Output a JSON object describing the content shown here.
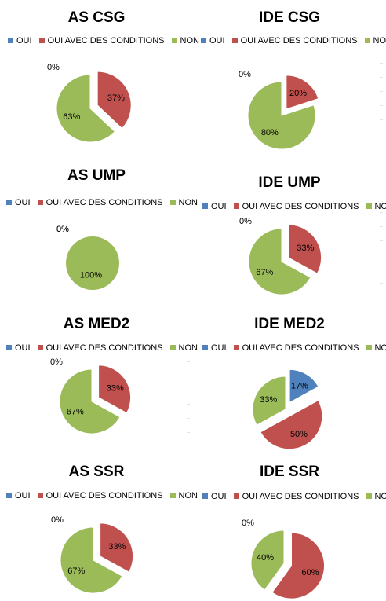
{
  "colors": {
    "OUI": "#4f81bd",
    "OUI AVEC DES CONDITIONS": "#c0504d",
    "NON": "#9bbb59"
  },
  "chart_data": [
    {
      "type": "pie",
      "title": "AS CSG",
      "categories": [
        "OUI",
        "OUI AVEC DES CONDITIONS",
        "NON"
      ],
      "values": [
        0,
        37,
        63
      ],
      "labels": [
        "0%",
        "37%",
        "63%"
      ],
      "legend_position": "top"
    },
    {
      "type": "pie",
      "title": "IDE CSG",
      "categories": [
        "OUI",
        "OUI AVEC DES CONDITIONS",
        "NON"
      ],
      "values": [
        0,
        20,
        80
      ],
      "labels": [
        "0%",
        "20%",
        "80%"
      ],
      "legend_position": "top"
    },
    {
      "type": "pie",
      "title": "AS UMP",
      "categories": [
        "OUI",
        "OUI AVEC DES CONDITIONS",
        "NON"
      ],
      "values": [
        0,
        0,
        100
      ],
      "labels": [
        "0%",
        "0%",
        "100%"
      ],
      "legend_position": "top"
    },
    {
      "type": "pie",
      "title": "IDE UMP",
      "categories": [
        "OUI",
        "OUI AVEC DES CONDITIONS",
        "NON"
      ],
      "values": [
        0,
        33,
        67
      ],
      "labels": [
        "0%",
        "33%",
        "67%"
      ],
      "legend_position": "top"
    },
    {
      "type": "pie",
      "title": "AS MED2",
      "categories": [
        "OUI",
        "OUI AVEC DES CONDITIONS",
        "NON"
      ],
      "values": [
        0,
        33,
        67
      ],
      "labels": [
        "0%",
        "33%",
        "67%"
      ],
      "legend_position": "top"
    },
    {
      "type": "pie",
      "title": "IDE MED2",
      "categories": [
        "OUI",
        "OUI AVEC DES CONDITIONS",
        "NON"
      ],
      "values": [
        17,
        50,
        33
      ],
      "labels": [
        "17%",
        "50%",
        "33%"
      ],
      "legend_position": "top"
    },
    {
      "type": "pie",
      "title": "AS SSR",
      "categories": [
        "OUI",
        "OUI AVEC DES CONDITIONS",
        "NON"
      ],
      "values": [
        0,
        33,
        67
      ],
      "labels": [
        "0%",
        "33%",
        "67%"
      ],
      "legend_position": "top"
    },
    {
      "type": "pie",
      "title": "IDE SSR",
      "categories": [
        "OUI",
        "OUI AVEC DES CONDITIONS",
        "NON"
      ],
      "values": [
        0,
        60,
        40
      ],
      "labels": [
        "0%",
        "60%",
        "40%"
      ],
      "legend_position": "top"
    }
  ]
}
